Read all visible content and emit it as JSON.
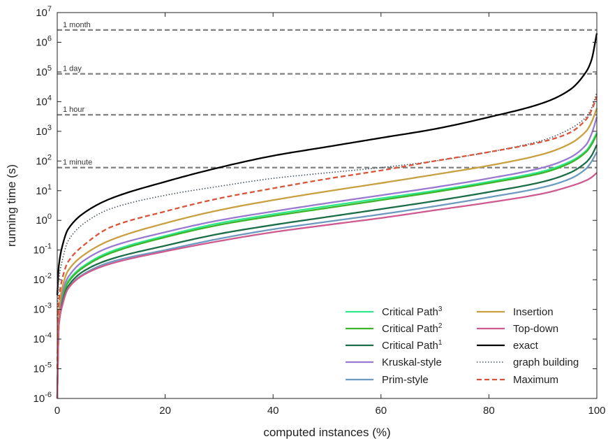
{
  "chart_data": {
    "type": "line",
    "xlabel": "computed instances (%)",
    "ylabel": "running time (s)",
    "xlim": [
      0,
      100
    ],
    "ylim": [
      1e-06,
      10000000.0
    ],
    "y_scale": "log",
    "grid": false,
    "legend_position": "bottom-right",
    "legend_columns": 2,
    "x_ticks": [
      0,
      20,
      40,
      60,
      80,
      100
    ],
    "x_tick_labels": [
      "0",
      "20",
      "40",
      "60",
      "80",
      "100"
    ],
    "y_ticks": [
      1e-06,
      1e-05,
      0.0001,
      0.001,
      0.01,
      0.1,
      1.0,
      10.0,
      100.0,
      1000.0,
      10000.0,
      100000.0,
      1000000.0,
      10000000.0
    ],
    "y_tick_labels": [
      {
        "base": "10",
        "exp": "-6"
      },
      {
        "base": "10",
        "exp": "-5"
      },
      {
        "base": "10",
        "exp": "-4"
      },
      {
        "base": "10",
        "exp": "-3"
      },
      {
        "base": "10",
        "exp": "-2"
      },
      {
        "base": "10",
        "exp": "-1"
      },
      {
        "base": "10",
        "exp": "0"
      },
      {
        "base": "10",
        "exp": "1"
      },
      {
        "base": "10",
        "exp": "2"
      },
      {
        "base": "10",
        "exp": "3"
      },
      {
        "base": "10",
        "exp": "4"
      },
      {
        "base": "10",
        "exp": "5"
      },
      {
        "base": "10",
        "exp": "6"
      },
      {
        "base": "10",
        "exp": "7"
      }
    ],
    "reference_lines": [
      {
        "label": "1 month",
        "value": 2592000
      },
      {
        "label": "1 day",
        "value": 86400
      },
      {
        "label": "1 hour",
        "value": 3600
      },
      {
        "label": "1 minute",
        "value": 60
      }
    ],
    "x": [
      0,
      0.3,
      1,
      2,
      5,
      10,
      20,
      30,
      40,
      50,
      60,
      70,
      80,
      90,
      95,
      98,
      99,
      100
    ],
    "series": [
      {
        "name": "Critical Path",
        "superscript": "3",
        "color": "#2ee88a",
        "style": "solid",
        "values": [
          1e-06,
          0.0005,
          0.003,
          0.009,
          0.03,
          0.09,
          0.3,
          0.8,
          1.6,
          3.0,
          5.5,
          10,
          20,
          45,
          95,
          220,
          400,
          900
        ]
      },
      {
        "name": "Critical Path",
        "superscript": "2",
        "color": "#3db52a",
        "style": "solid",
        "values": [
          1e-06,
          0.0004,
          0.0025,
          0.008,
          0.027,
          0.08,
          0.27,
          0.7,
          1.4,
          2.6,
          4.8,
          9,
          18,
          40,
          85,
          200,
          350,
          800
        ]
      },
      {
        "name": "Critical Path",
        "superscript": "1",
        "color": "#1b6e48",
        "style": "solid",
        "values": [
          1e-06,
          0.0003,
          0.0018,
          0.006,
          0.02,
          0.05,
          0.14,
          0.35,
          0.7,
          1.3,
          2.4,
          4.5,
          9,
          20,
          40,
          90,
          150,
          350
        ]
      },
      {
        "name": "Kruskal-style",
        "color": "#9a7ad0",
        "style": "solid",
        "values": [
          1e-06,
          0.0005,
          0.004,
          0.012,
          0.045,
          0.13,
          0.4,
          1.0,
          2.0,
          3.8,
          7,
          13,
          26,
          60,
          130,
          350,
          800,
          3000
        ]
      },
      {
        "name": "Prim-style",
        "color": "#6c9ac0",
        "style": "solid",
        "values": [
          1e-06,
          0.0003,
          0.0015,
          0.005,
          0.016,
          0.04,
          0.1,
          0.24,
          0.5,
          0.9,
          1.6,
          3.0,
          6,
          13,
          25,
          55,
          95,
          200
        ]
      },
      {
        "name": "Insertion",
        "color": "#c8a040",
        "style": "solid",
        "values": [
          1e-06,
          0.0008,
          0.006,
          0.02,
          0.07,
          0.22,
          0.8,
          2.2,
          4.8,
          9.5,
          18,
          35,
          70,
          170,
          380,
          1000,
          2000,
          6000
        ]
      },
      {
        "name": "Top-down",
        "color": "#cf5a8f",
        "style": "solid",
        "values": [
          1e-06,
          0.0003,
          0.0015,
          0.005,
          0.015,
          0.035,
          0.09,
          0.2,
          0.4,
          0.7,
          1.2,
          2.2,
          4,
          8,
          14,
          22,
          28,
          40
        ]
      },
      {
        "name": "exact",
        "color": "#000000",
        "style": "solid",
        "values": [
          0.003,
          0.03,
          0.15,
          0.5,
          1.8,
          5.5,
          20,
          60,
          150,
          300,
          600,
          1200,
          3000,
          9000,
          25000,
          100000,
          250000,
          2000000
        ]
      },
      {
        "name": "graph building",
        "color": "#44525e",
        "style": "dotted",
        "values": [
          0.0005,
          0.01,
          0.05,
          0.2,
          0.8,
          2.5,
          7,
          14,
          26,
          40,
          60,
          100,
          200,
          500,
          1200,
          3000,
          6000,
          20000
        ]
      },
      {
        "name": "Maximum",
        "color": "#d9553a",
        "style": "dashed",
        "values": [
          1e-05,
          0.002,
          0.012,
          0.04,
          0.15,
          0.6,
          2.0,
          5.5,
          12,
          25,
          48,
          100,
          200,
          450,
          900,
          2500,
          5000,
          15000
        ]
      }
    ],
    "legend_order": [
      0,
      1,
      2,
      3,
      4,
      5,
      6,
      7,
      8,
      9
    ]
  }
}
